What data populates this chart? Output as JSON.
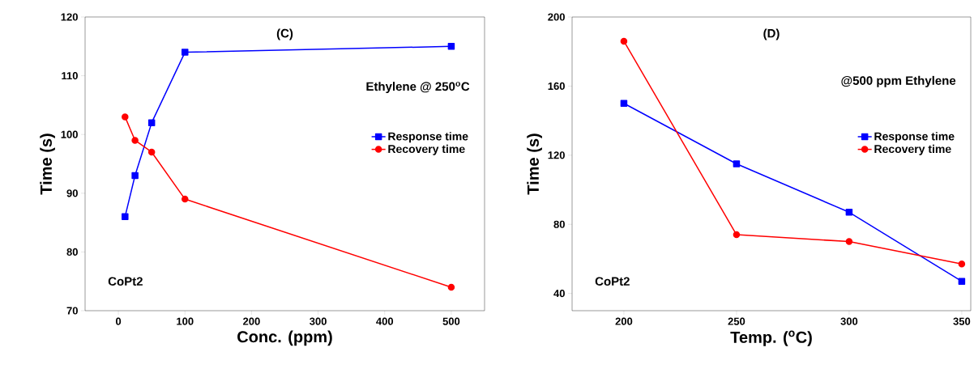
{
  "chart_data": [
    {
      "type": "line",
      "xlabel": "Conc. (ppm)",
      "ylabel": "Time (s)",
      "xlim": [
        -50,
        550
      ],
      "xticks": [
        0,
        100,
        200,
        300,
        400,
        500
      ],
      "ylim": [
        70,
        120
      ],
      "yticks": [
        70,
        80,
        90,
        100,
        110,
        120
      ],
      "legend": "right",
      "grid": false,
      "annotations": [
        "(C)",
        "Ethylene @ 250$^{o}$C",
        "CoPt2"
      ],
      "series": [
        {
          "name": "Response time",
          "color": "#0000ff",
          "marker": "square",
          "x": [
            10,
            25,
            50,
            100,
            500
          ],
          "values": [
            86,
            93,
            102,
            114,
            115
          ]
        },
        {
          "name": "Recovery time",
          "color": "#ff0000",
          "marker": "circle",
          "x": [
            10,
            25,
            50,
            100,
            500
          ],
          "values": [
            103,
            99,
            97,
            89,
            74
          ]
        }
      ]
    },
    {
      "type": "line",
      "xlabel": "Temp. ($^{o}$C)",
      "ylabel": "Time (s)",
      "xlim": [
        177,
        354
      ],
      "xticks": [
        200,
        250,
        300,
        350
      ],
      "ylim": [
        30,
        200
      ],
      "yticks": [
        40,
        80,
        120,
        160,
        200
      ],
      "legend": "right",
      "grid": false,
      "annotations": [
        "(D)",
        "@500 ppm Ethylene",
        "CoPt2"
      ],
      "series": [
        {
          "name": "Response time",
          "color": "#0000ff",
          "marker": "square",
          "x": [
            200,
            250,
            300,
            350
          ],
          "values": [
            150,
            115,
            87,
            47
          ]
        },
        {
          "name": "Recovery time",
          "color": "#ff0000",
          "marker": "circle",
          "x": [
            200,
            250,
            300,
            350
          ],
          "values": [
            186,
            74,
            70,
            57
          ]
        }
      ]
    }
  ]
}
